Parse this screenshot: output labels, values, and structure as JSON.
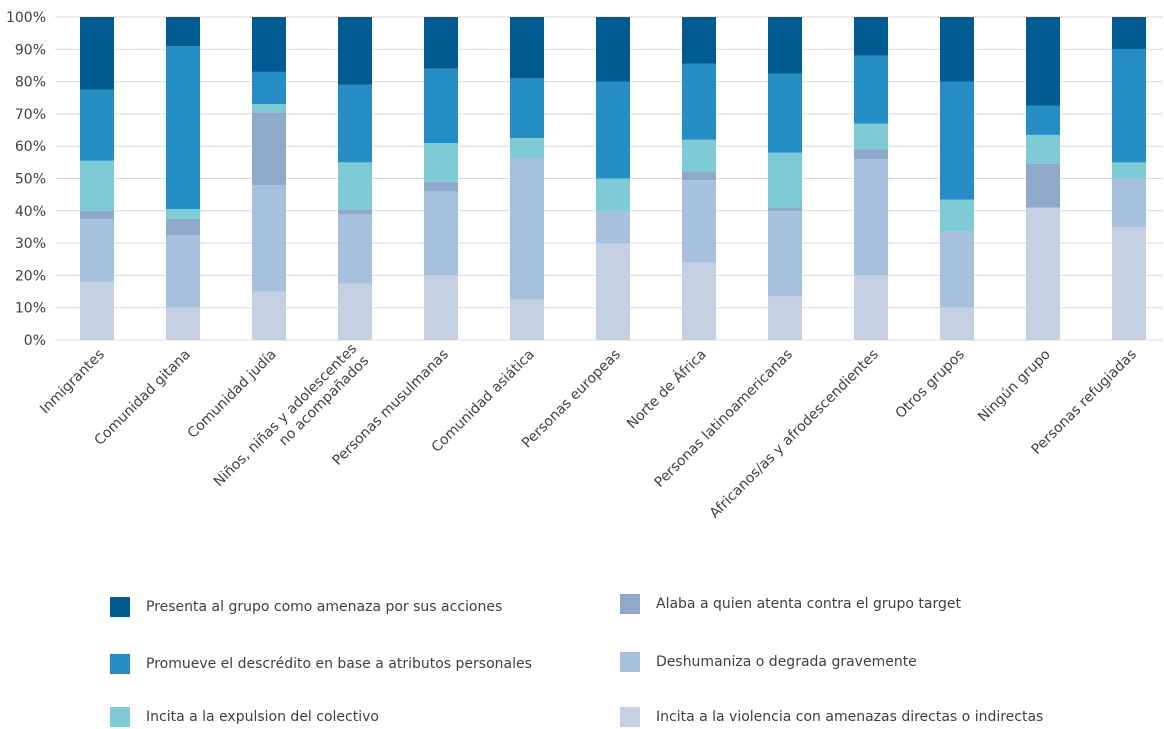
{
  "chart_data": {
    "type": "bar",
    "stacked": true,
    "ylim": [
      0,
      100
    ],
    "yticks": [
      "0%",
      "10%",
      "20%",
      "30%",
      "40%",
      "50%",
      "60%",
      "70%",
      "80%",
      "90%",
      "100%"
    ],
    "grid": true,
    "legend_position": "bottom",
    "categories": [
      [
        "Inmigrantes"
      ],
      [
        "Comunidad gitana"
      ],
      [
        "Comunidad judía"
      ],
      [
        "Niños, niñas y adolescentes",
        "no acompañados"
      ],
      [
        "Personas musulmanas"
      ],
      [
        "Comunidad asiática"
      ],
      [
        "Personas europeas"
      ],
      [
        "Norte de África"
      ],
      [
        "Personas latinoamericanas"
      ],
      [
        "Africanos/as y afrodescendientes"
      ],
      [
        "Otros grupos"
      ],
      [
        "Ningún grupo"
      ],
      [
        "Personas refugiadas"
      ]
    ],
    "series": [
      {
        "name": "Incita a la violencia con amenazas directas o indirectas",
        "color": "#c6d0e3",
        "values": [
          18,
          10,
          15,
          17.5,
          20,
          12.5,
          30,
          24,
          13.5,
          20,
          10,
          41,
          35
        ]
      },
      {
        "name": "Deshumaniza o degrada gravemente",
        "color": "#a7c0de",
        "values": [
          19.5,
          22.5,
          33,
          21.5,
          26,
          44,
          10,
          25.5,
          26.5,
          36,
          23.5,
          0,
          15
        ]
      },
      {
        "name": "Alaba a quien atenta contra el grupo target",
        "color": "#8ea9cb",
        "values": [
          2.5,
          5,
          22.5,
          1.5,
          3,
          0,
          0,
          2.5,
          1,
          3,
          0,
          13.5,
          0
        ]
      },
      {
        "name": "Incita a la expulsion del colectivo",
        "color": "#7ecbd6",
        "values": [
          15.5,
          3,
          2.5,
          14.5,
          12,
          6,
          10,
          10,
          17,
          8,
          10,
          9,
          5
        ]
      },
      {
        "name": "Promueve el descrédito en base a atributos personales",
        "color": "#238dc4",
        "values": [
          22,
          50.5,
          10,
          24,
          23,
          18.5,
          30,
          23.5,
          24.5,
          21,
          36.5,
          9,
          35
        ]
      },
      {
        "name": "Presenta al grupo como amenaza por sus acciones",
        "color": "#005b91",
        "values": [
          22.5,
          9,
          17,
          21,
          16,
          19,
          20,
          14.5,
          17.5,
          12,
          20,
          27.5,
          10
        ]
      }
    ],
    "legend": [
      {
        "label": "Presenta al grupo como amenaza por sus acciones",
        "color": "#005b91"
      },
      {
        "label": "Alaba a quien atenta contra el grupo target",
        "color": "#8ea9cb"
      },
      {
        "label": "Promueve el descrédito en base a atributos personales",
        "color": "#238dc4"
      },
      {
        "label": "Deshumaniza o degrada gravemente",
        "color": "#a7c0de"
      },
      {
        "label": "Incita a la expulsion del colectivo",
        "color": "#7ecbd6"
      },
      {
        "label": "Incita a la violencia con amenazas directas o indirectas",
        "color": "#c6d0e3"
      }
    ]
  }
}
